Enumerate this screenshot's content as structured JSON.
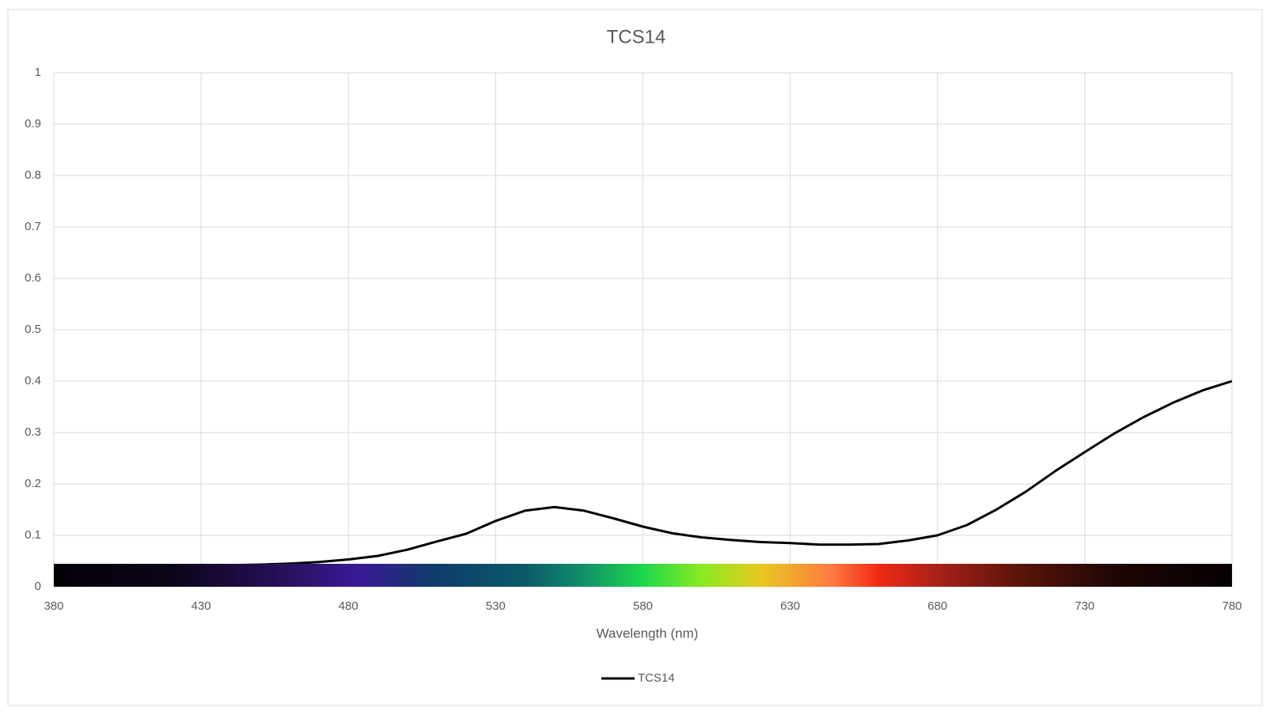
{
  "chart_data": {
    "type": "line",
    "title": "TCS14",
    "x_label": "Wavelength (nm)",
    "x": [
      380,
      390,
      400,
      410,
      420,
      430,
      440,
      450,
      460,
      470,
      480,
      490,
      500,
      510,
      520,
      530,
      540,
      550,
      560,
      570,
      580,
      590,
      600,
      610,
      620,
      630,
      640,
      650,
      660,
      670,
      680,
      690,
      700,
      710,
      720,
      730,
      740,
      750,
      760,
      770,
      780
    ],
    "series": [
      {
        "name": "TCS14",
        "color": "#000000",
        "values": [
          0.04,
          0.04,
          0.04,
          0.04,
          0.04,
          0.041,
          0.042,
          0.043,
          0.045,
          0.048,
          0.053,
          0.06,
          0.072,
          0.088,
          0.103,
          0.128,
          0.148,
          0.155,
          0.148,
          0.133,
          0.117,
          0.104,
          0.096,
          0.091,
          0.087,
          0.085,
          0.082,
          0.082,
          0.083,
          0.09,
          0.1,
          0.12,
          0.15,
          0.185,
          0.225,
          0.262,
          0.298,
          0.33,
          0.358,
          0.382,
          0.4
        ]
      }
    ],
    "xlim": [
      380,
      780
    ],
    "xticks": [
      380,
      430,
      480,
      530,
      580,
      630,
      680,
      730,
      780
    ],
    "ylim": [
      0,
      1
    ],
    "yticks": [
      0,
      0.1,
      0.2,
      0.3,
      0.4,
      0.5,
      0.6,
      0.7,
      0.8,
      0.9,
      1
    ],
    "grid": true,
    "legend": "bottom"
  }
}
